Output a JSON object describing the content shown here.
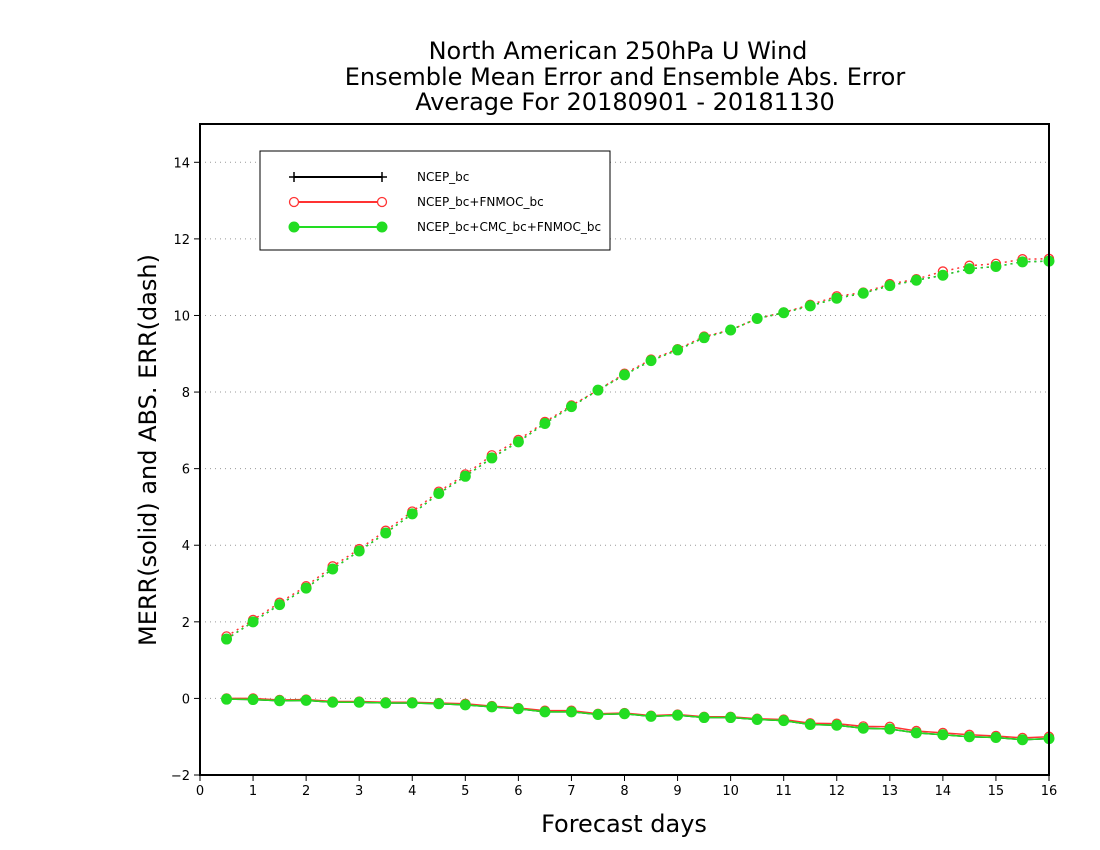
{
  "chart_data": {
    "type": "line",
    "title": [
      "North American 250hPa U Wind",
      "Ensemble Mean Error and Ensemble Abs. Error",
      "Average For 20180901 - 20181130"
    ],
    "xlabel": "Forecast days",
    "ylabel": "MERR(solid) and ABS. ERR(dash)",
    "xlim": [
      0,
      16
    ],
    "ylim": [
      -2,
      15
    ],
    "xticks": [
      "0",
      "1",
      "2",
      "3",
      "4",
      "5",
      "6",
      "7",
      "8",
      "9",
      "10",
      "11",
      "12",
      "13",
      "14",
      "15",
      "16"
    ],
    "yticks": [
      "−2",
      "0",
      "2",
      "4",
      "6",
      "8",
      "10",
      "12",
      "14"
    ],
    "grid": "horizontal dotted",
    "legend_position": "top-left",
    "x": [
      0.5,
      1,
      1.5,
      2,
      2.5,
      3,
      3.5,
      4,
      4.5,
      5,
      5.5,
      6,
      6.5,
      7,
      7.5,
      8,
      8.5,
      9,
      9.5,
      10,
      10.5,
      11,
      11.5,
      12,
      12.5,
      13,
      13.5,
      14,
      14.5,
      15,
      15.5,
      16
    ],
    "series": [
      {
        "name": "NCEP_bc",
        "color": "#000000",
        "marker": "plus",
        "merr": [
          -0.02,
          -0.03,
          -0.06,
          -0.05,
          -0.1,
          -0.1,
          -0.12,
          -0.12,
          -0.14,
          -0.17,
          -0.22,
          -0.27,
          -0.35,
          -0.35,
          -0.42,
          -0.4,
          -0.47,
          -0.44,
          -0.5,
          -0.5,
          -0.55,
          -0.58,
          -0.68,
          -0.7,
          -0.78,
          -0.8,
          -0.9,
          -0.95,
          -1.0,
          -1.02,
          -1.08,
          -1.05
        ],
        "abs_err": [
          1.55,
          2.0,
          2.45,
          2.88,
          3.38,
          3.85,
          4.32,
          4.82,
          5.35,
          5.8,
          6.28,
          6.7,
          7.18,
          7.62,
          8.05,
          8.45,
          8.82,
          9.1,
          9.42,
          9.62,
          9.92,
          10.07,
          10.25,
          10.45,
          10.58,
          10.78,
          10.92,
          11.05,
          11.22,
          11.28,
          11.4,
          11.42
        ]
      },
      {
        "name": "NCEP_bc+FNMOC_bc",
        "color": "#ff3333",
        "marker": "open-circle",
        "merr": [
          0.0,
          0.0,
          -0.04,
          -0.03,
          -0.08,
          -0.08,
          -0.1,
          -0.1,
          -0.12,
          -0.14,
          -0.2,
          -0.25,
          -0.32,
          -0.32,
          -0.4,
          -0.38,
          -0.45,
          -0.42,
          -0.48,
          -0.48,
          -0.53,
          -0.55,
          -0.65,
          -0.66,
          -0.73,
          -0.74,
          -0.85,
          -0.9,
          -0.95,
          -0.98,
          -1.03,
          -1.0
        ],
        "abs_err": [
          1.62,
          2.05,
          2.5,
          2.93,
          3.45,
          3.9,
          4.38,
          4.88,
          5.4,
          5.85,
          6.35,
          6.75,
          7.22,
          7.65,
          8.05,
          8.48,
          8.85,
          9.12,
          9.45,
          9.62,
          9.92,
          10.08,
          10.28,
          10.5,
          10.6,
          10.82,
          10.95,
          11.15,
          11.3,
          11.35,
          11.47,
          11.48
        ]
      },
      {
        "name": "NCEP_bc+CMC_bc+FNMOC_bc",
        "color": "#22dd22",
        "marker": "filled-circle",
        "merr": [
          -0.02,
          -0.03,
          -0.06,
          -0.05,
          -0.1,
          -0.1,
          -0.12,
          -0.12,
          -0.14,
          -0.17,
          -0.22,
          -0.27,
          -0.35,
          -0.35,
          -0.42,
          -0.4,
          -0.47,
          -0.44,
          -0.5,
          -0.5,
          -0.55,
          -0.58,
          -0.68,
          -0.7,
          -0.78,
          -0.8,
          -0.9,
          -0.95,
          -1.0,
          -1.02,
          -1.08,
          -1.05
        ],
        "abs_err": [
          1.55,
          2.0,
          2.45,
          2.88,
          3.38,
          3.85,
          4.32,
          4.82,
          5.35,
          5.8,
          6.28,
          6.7,
          7.18,
          7.62,
          8.05,
          8.45,
          8.82,
          9.1,
          9.42,
          9.62,
          9.92,
          10.07,
          10.25,
          10.45,
          10.58,
          10.78,
          10.92,
          11.05,
          11.22,
          11.28,
          11.4,
          11.42
        ]
      }
    ]
  }
}
